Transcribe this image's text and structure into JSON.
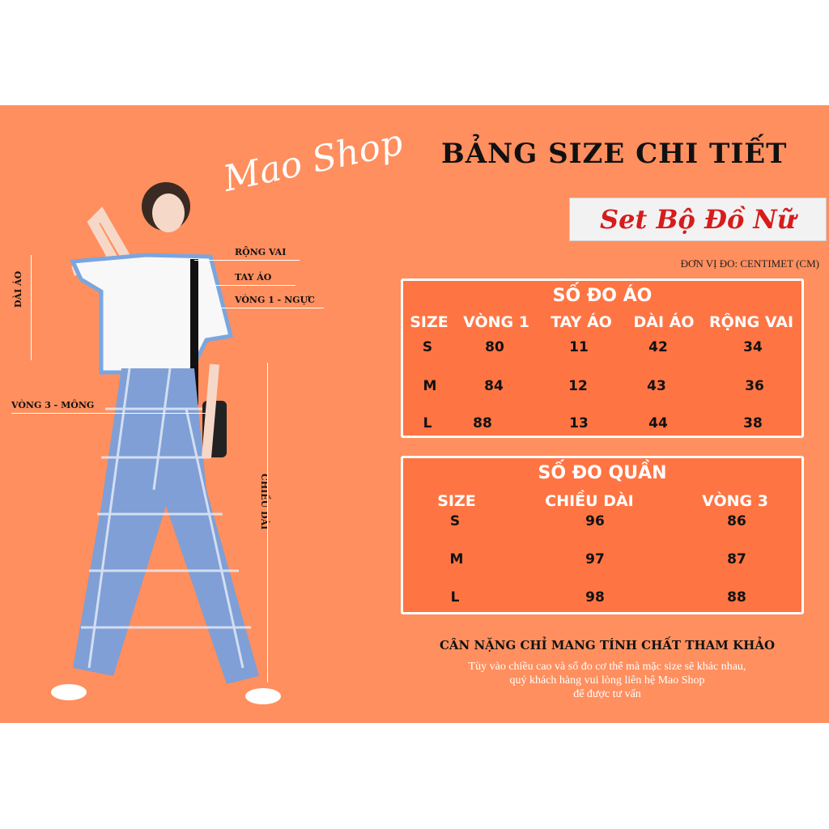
{
  "brand": "Mao Shop",
  "title": "BẢNG SIZE CHI TIẾT",
  "product": "Set Bộ Đồ Nữ",
  "unit": "ĐƠN VỊ ĐO: CENTIMET (CM)",
  "body_labels": {
    "shoulder": "RỘNG VAI",
    "sleeve": "TAY ÁO",
    "chest": "VÒNG 1 - NGỰC",
    "shirt_length": "DÀI ÁO",
    "hip": "VÒNG 3 - MÔNG",
    "pants_length": "CHIỀU DÀI"
  },
  "shirt": {
    "title": "SỐ ĐO ÁO",
    "columns": [
      "SIZE",
      "VÒNG 1",
      "TAY ÁO",
      "DÀI ÁO",
      "RỘNG VAI"
    ],
    "rows": [
      [
        "S",
        "80",
        "11",
        "42",
        "34"
      ],
      [
        "M",
        "84",
        "12",
        "43",
        "36"
      ],
      [
        "L",
        "88",
        "13",
        "44",
        "38"
      ]
    ]
  },
  "pants": {
    "title": "SỐ ĐO QUẦN",
    "columns": [
      "SIZE",
      "CHIỀU DÀI",
      "VÒNG 3"
    ],
    "rows": [
      [
        "S",
        "96",
        "86"
      ],
      [
        "M",
        "97",
        "87"
      ],
      [
        "L",
        "98",
        "88"
      ]
    ]
  },
  "note": {
    "heading": "CÂN NẶNG CHỈ MANG TÍNH CHẤT THAM KHẢO",
    "lines": [
      "Tùy vào chiều cao và số đo cơ thể mà mặc size sẽ khác nhau,",
      "quý khách hàng vui lòng liên hệ Mao Shop",
      "để được tư vấn"
    ]
  },
  "colors": {
    "background": "#ff8f5e",
    "table": "#ff7443",
    "accent": "#d61c1c"
  }
}
